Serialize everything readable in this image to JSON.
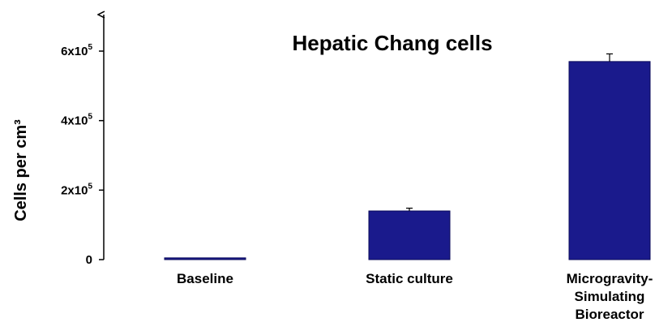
{
  "chart_data": {
    "type": "bar",
    "title": "Hepatic Chang cells",
    "ylabel": "Cells per cm³",
    "xlabel": "",
    "categories": [
      "Baseline",
      "Static culture",
      "Microgravity-Simulating Bioreactor"
    ],
    "category_lines": [
      [
        "Baseline"
      ],
      [
        "Static culture"
      ],
      [
        "Microgravity-",
        "Simulating",
        "Bioreactor"
      ]
    ],
    "values": [
      5000,
      140000,
      570000
    ],
    "errors": [
      0,
      8000,
      22000
    ],
    "yticks": [
      0,
      200000,
      400000,
      600000
    ],
    "ytick_labels": [
      {
        "base": "0",
        "exp": ""
      },
      {
        "base": "2x10",
        "exp": "5"
      },
      {
        "base": "4x10",
        "exp": "5"
      },
      {
        "base": "6x10",
        "exp": "5"
      }
    ],
    "ylim": [
      0,
      680000
    ],
    "bar_color": "#1a1a8c",
    "grid": false,
    "legend": "none"
  }
}
